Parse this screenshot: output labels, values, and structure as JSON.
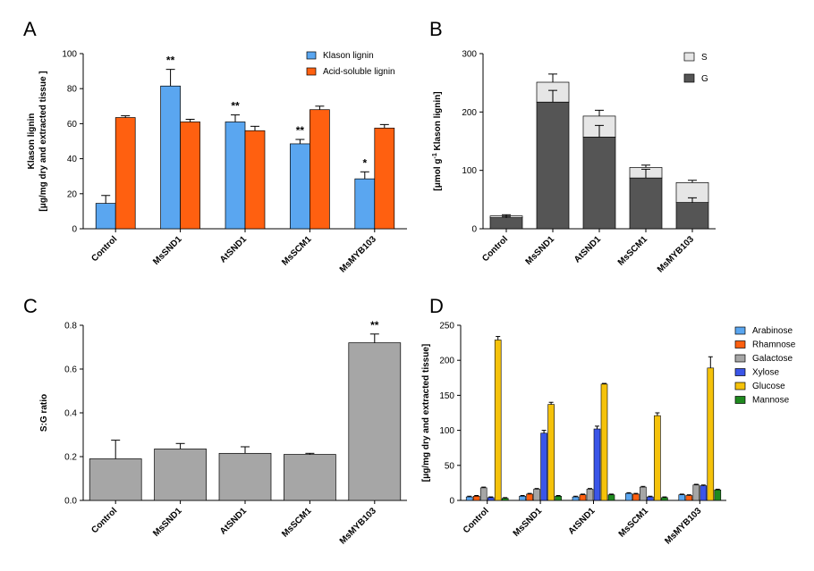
{
  "panels": {
    "A": {
      "letter": "A"
    },
    "B": {
      "letter": "B"
    },
    "C": {
      "letter": "C"
    },
    "D": {
      "letter": "D"
    }
  },
  "chart_data": [
    {
      "id": "A",
      "type": "bar",
      "categories": [
        "Control",
        "MsSND1",
        "AtSND1",
        "MsSCM1",
        "MsMYB103"
      ],
      "series": [
        {
          "name": "Klason lignin",
          "color": "#5aa6f0",
          "values": [
            14.5,
            81.5,
            61,
            48.5,
            28.5
          ],
          "errors": [
            4.5,
            9.5,
            4,
            2.5,
            4
          ]
        },
        {
          "name": "Acid-soluble lignin",
          "color": "#ff6010",
          "values": [
            63.5,
            61,
            56,
            68,
            57.5
          ],
          "errors": [
            1,
            1.5,
            2.5,
            2,
            2
          ]
        }
      ],
      "annotations": [
        "",
        "**",
        "**",
        "**",
        "*"
      ],
      "ylabel_line1": "Klason lignin",
      "ylabel_line2": "[μg/mg dry and extracted tissue ]",
      "ylim": [
        0,
        100
      ],
      "yticks": [
        0,
        20,
        40,
        60,
        80,
        100
      ],
      "legend_position": "top-right"
    },
    {
      "id": "B",
      "type": "bar",
      "stacked": true,
      "categories": [
        "Control",
        "MsSND1",
        "AtSND1",
        "MsSCM1",
        "MsMYB103"
      ],
      "series": [
        {
          "name": "G",
          "color": "#555555",
          "values": [
            19,
            217,
            157,
            87,
            45
          ],
          "errors": [
            2,
            20,
            20,
            15,
            8
          ]
        },
        {
          "name": "S",
          "color": "#e6e6e6",
          "values": [
            3,
            34,
            36,
            18,
            34
          ],
          "errors": [
            2,
            14,
            10,
            4,
            4
          ]
        }
      ],
      "ylabel_parts": [
        "[μmol g",
        "-1",
        " Klason lignin]"
      ],
      "ylim": [
        0,
        300
      ],
      "yticks": [
        0,
        100,
        200,
        300
      ],
      "legend_position": "top-right"
    },
    {
      "id": "C",
      "type": "bar",
      "categories": [
        "Control",
        "MsSND1",
        "AtSND1",
        "MsSCM1",
        "MsMYB103"
      ],
      "series": [
        {
          "name": "",
          "color": "#a6a6a6",
          "values": [
            0.19,
            0.235,
            0.215,
            0.21,
            0.72
          ],
          "errors": [
            0.085,
            0.025,
            0.03,
            0.005,
            0.04
          ]
        }
      ],
      "annotations": [
        "",
        "",
        "",
        "",
        "**"
      ],
      "ylabel": "S:G ratio",
      "ylim": [
        0,
        0.8
      ],
      "yticks": [
        "0.0",
        "0.2",
        "0.4",
        "0.6",
        "0.8"
      ]
    },
    {
      "id": "D",
      "type": "bar",
      "categories": [
        "Control",
        "MsSND1",
        "AtSND1",
        "MsSCM1",
        "MsMYB103"
      ],
      "series": [
        {
          "name": "Arabinose",
          "color": "#5aa6f0",
          "values": [
            5,
            6,
            5,
            10,
            8
          ],
          "errors": [
            1,
            1,
            1,
            1,
            1
          ]
        },
        {
          "name": "Rhamnose",
          "color": "#ff6010",
          "values": [
            6,
            9,
            8,
            9,
            7
          ],
          "errors": [
            1,
            1,
            1,
            1,
            1
          ]
        },
        {
          "name": "Galactose",
          "color": "#a6a6a6",
          "values": [
            18,
            16,
            16,
            19,
            22
          ],
          "errors": [
            1,
            1,
            1,
            1,
            1
          ]
        },
        {
          "name": "Xylose",
          "color": "#3a55e8",
          "values": [
            4,
            96,
            102,
            5,
            21
          ],
          "errors": [
            1,
            4,
            4,
            1,
            1
          ]
        },
        {
          "name": "Glucose",
          "color": "#f5c20a",
          "values": [
            229,
            137,
            166,
            121,
            189
          ],
          "errors": [
            5,
            3,
            1,
            4,
            16
          ]
        },
        {
          "name": "Mannose",
          "color": "#1f8a1f",
          "values": [
            3,
            6,
            8,
            4,
            15
          ],
          "errors": [
            1,
            1,
            1,
            1,
            1
          ]
        }
      ],
      "ylabel": "[μg/mg dry and extracted tissue]",
      "ylim": [
        0,
        250
      ],
      "yticks": [
        0,
        50,
        100,
        150,
        200,
        250
      ],
      "legend_position": "top-right"
    }
  ]
}
